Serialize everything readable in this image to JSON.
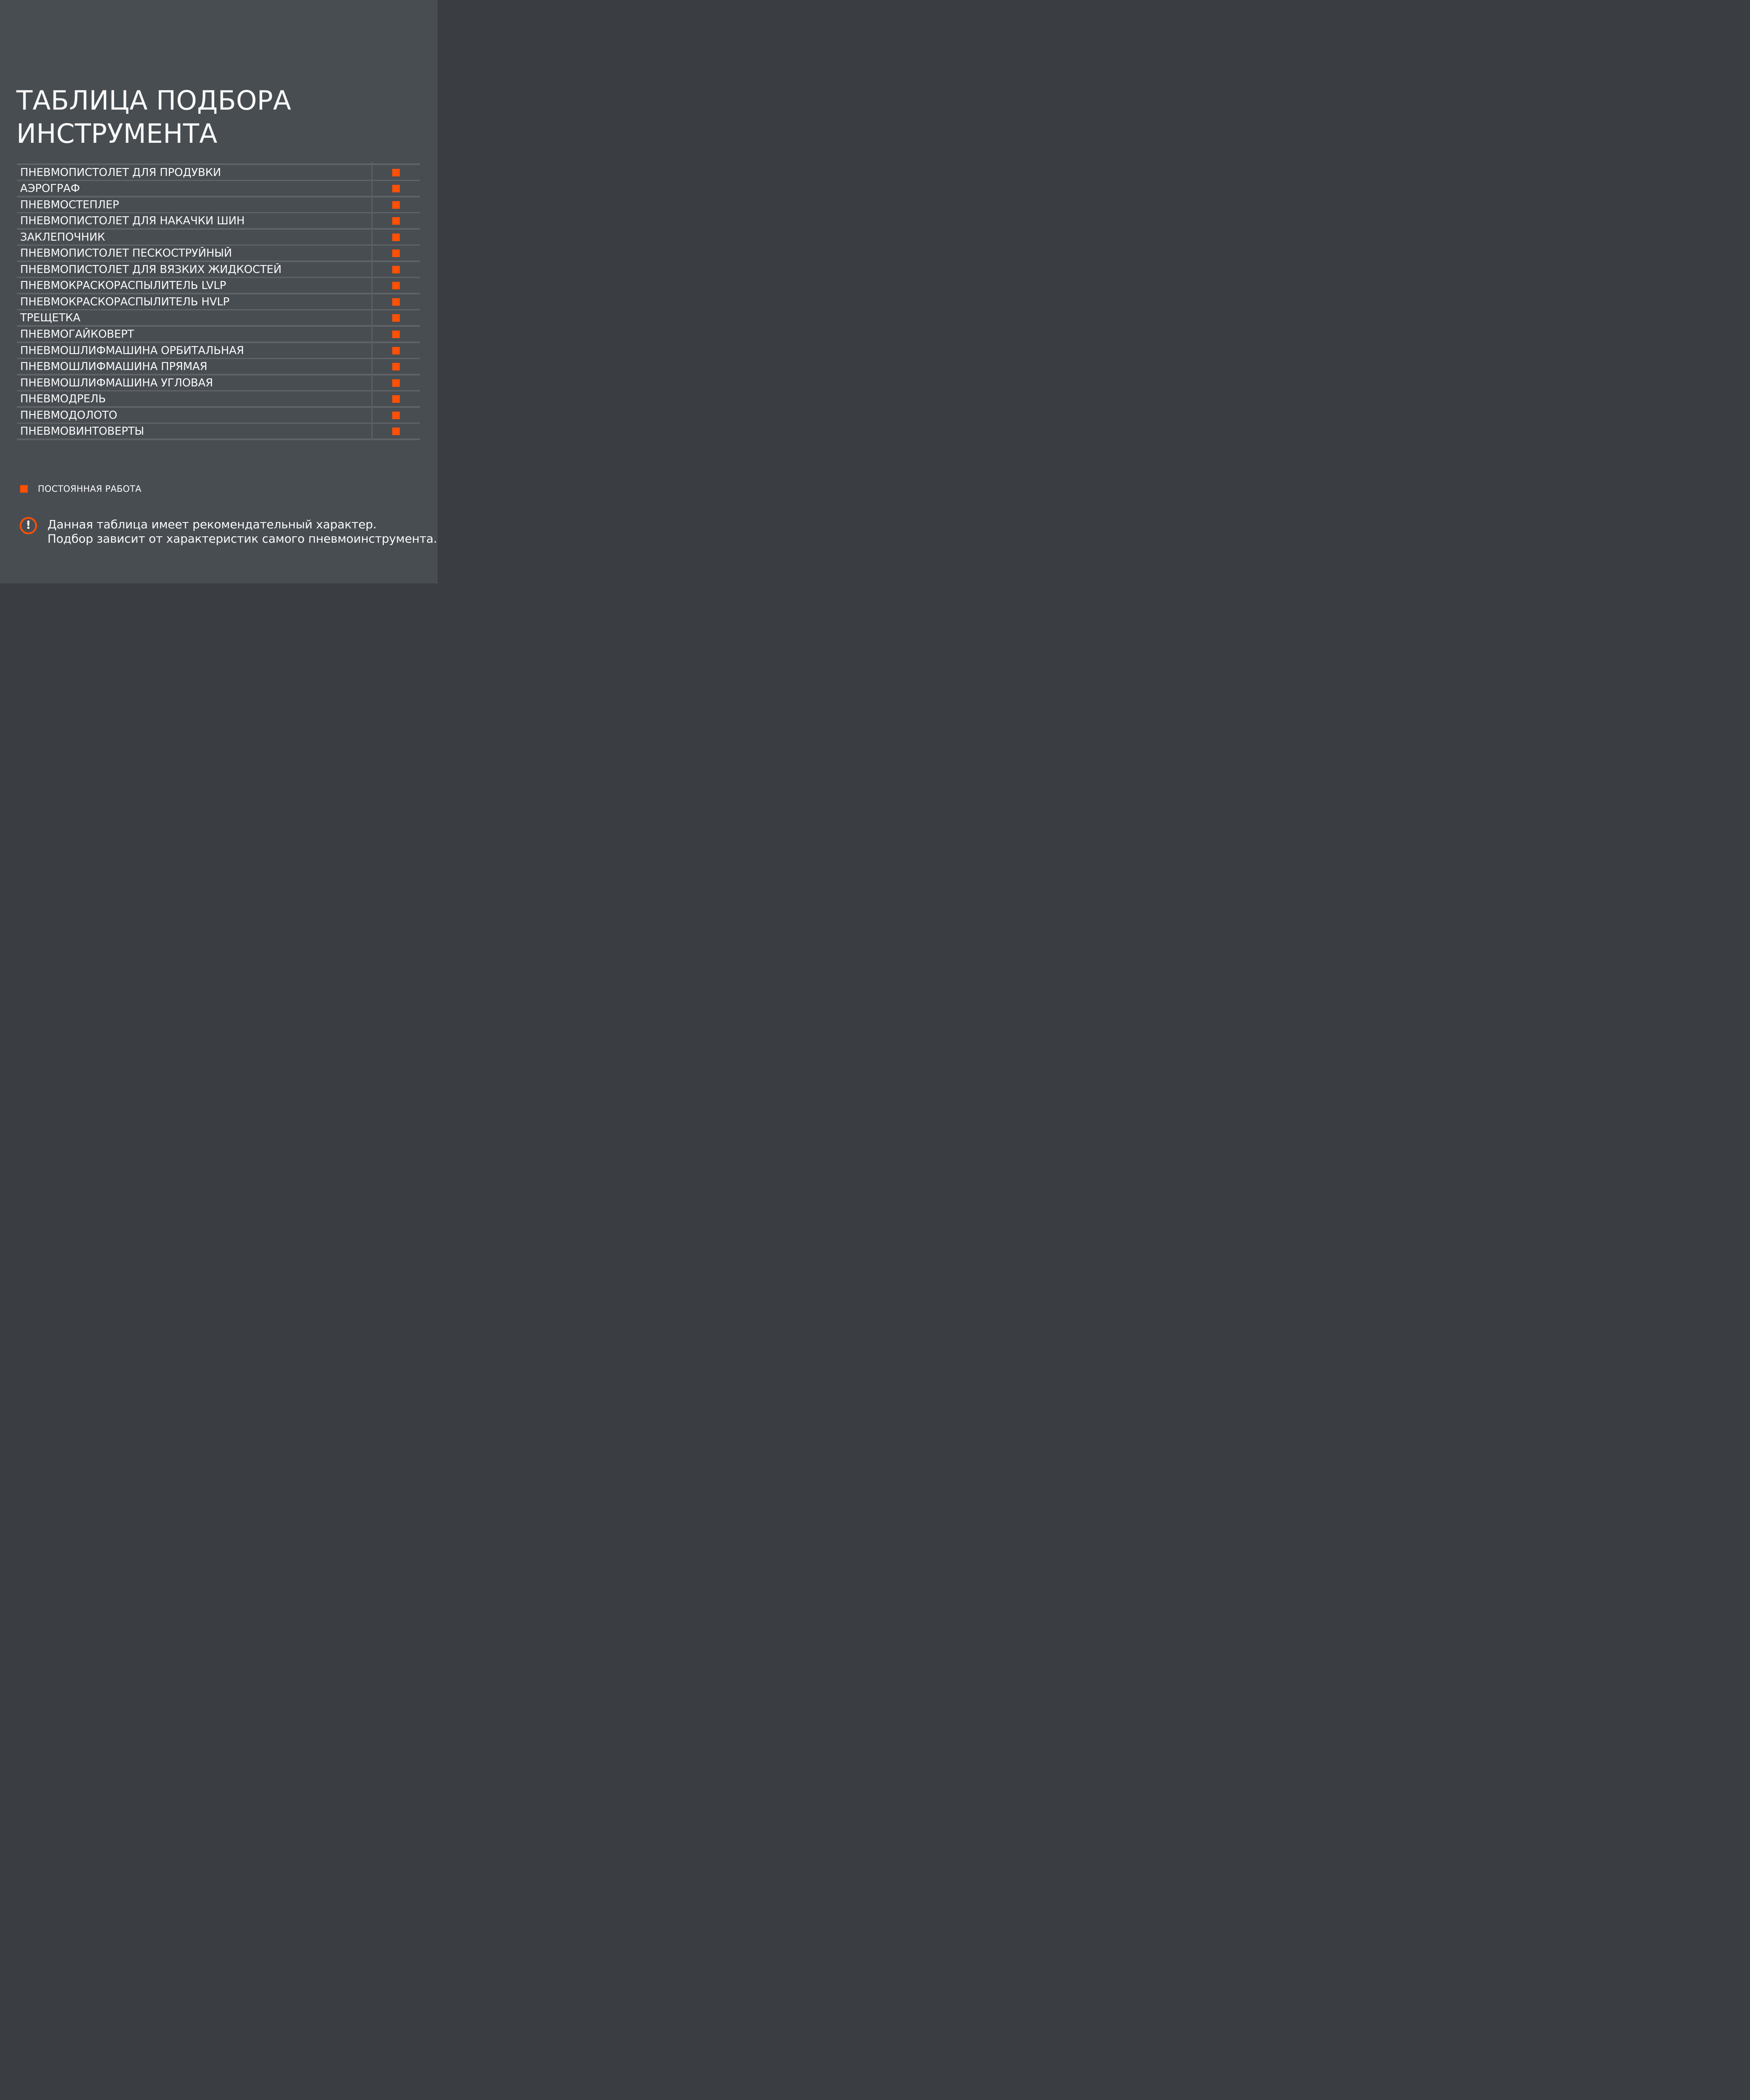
{
  "page": {
    "background": "#484D52",
    "line_color": "#5F6366",
    "accent": "#FF5004",
    "text_color": "#FAFAFA"
  },
  "title": {
    "line1": "ТАБЛИЦА ПОДБОРА",
    "line2": "ИНСТРУМЕНТА"
  },
  "table": {
    "rows": [
      {
        "label": "ПНЕВМОПИСТОЛЕТ ДЛЯ ПРОДУВКИ",
        "status": "permanent"
      },
      {
        "label": "АЭРОГРАФ",
        "status": "permanent"
      },
      {
        "label": "ПНЕВМОСТЕПЛЕР",
        "status": "permanent"
      },
      {
        "label": "ПНЕВМОПИСТОЛЕТ ДЛЯ НАКАЧКИ ШИН",
        "status": "permanent"
      },
      {
        "label": "ЗАКЛЕПОЧНИК",
        "status": "permanent"
      },
      {
        "label": "ПНЕВМОПИСТОЛЕТ ПЕСКОСТРУЙНЫЙ",
        "status": "permanent"
      },
      {
        "label": "ПНЕВМОПИСТОЛЕТ ДЛЯ ВЯЗКИХ ЖИДКОСТЕЙ",
        "status": "permanent"
      },
      {
        "label": "ПНЕВМОКРАСКОРАСПЫЛИТЕЛЬ LVLP",
        "status": "permanent"
      },
      {
        "label": "ПНЕВМОКРАСКОРАСПЫЛИТЕЛЬ HVLP",
        "status": "permanent"
      },
      {
        "label": "ТРЕЩЕТКА",
        "status": "permanent"
      },
      {
        "label": "ПНЕВМОГАЙКОВЕРТ",
        "status": "permanent"
      },
      {
        "label": "ПНЕВМОШЛИФМАШИНА ОРБИТАЛЬНАЯ",
        "status": "permanent"
      },
      {
        "label": "ПНЕВМОШЛИФМАШИНА ПРЯМАЯ",
        "status": "permanent"
      },
      {
        "label": "ПНЕВМОШЛИФМАШИНА УГЛОВАЯ",
        "status": "permanent"
      },
      {
        "label": "ПНЕВМОДРЕЛЬ",
        "status": "permanent"
      },
      {
        "label": "ПНЕВМОДОЛОТО",
        "status": "permanent"
      },
      {
        "label": "ПНЕВМОВИНТОВЕРТЫ",
        "status": "permanent"
      }
    ]
  },
  "legend": {
    "label": "ПОСТОЯННАЯ РАБОТА",
    "color": "#FF5004"
  },
  "note": {
    "icon_glyph": "!",
    "line1": "Данная таблица имеет рекомендательный характер.",
    "line2": "Подбор зависит от характеристик самого пневмоинструмента."
  }
}
